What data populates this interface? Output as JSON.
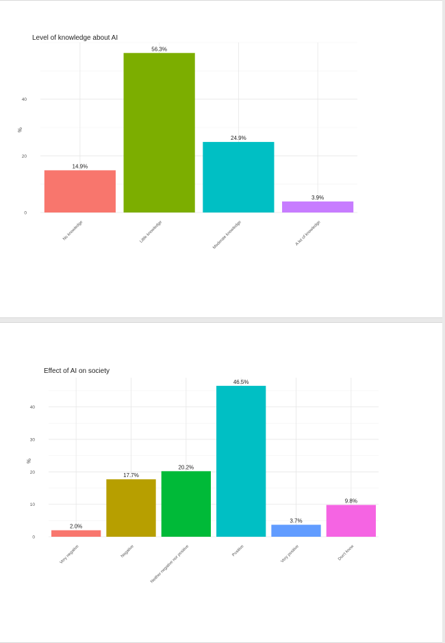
{
  "chart_data": [
    {
      "type": "bar",
      "title": "Level of knowledge about AI",
      "xlabel": "",
      "ylabel": "%",
      "ylim": [
        0,
        60
      ],
      "yticks": [
        0,
        20,
        40
      ],
      "grid": true,
      "categories": [
        "No knowledge",
        "Little knowledge",
        "Moderate knowledge",
        "A lot of knowledge"
      ],
      "values": [
        14.9,
        56.3,
        24.9,
        3.9
      ],
      "data_labels": [
        "14.9%",
        "56.3%",
        "24.9%",
        "3.9%"
      ],
      "colors": [
        "#f8766d",
        "#7cae00",
        "#00bfc4",
        "#c77cff"
      ]
    },
    {
      "type": "bar",
      "title": "Effect of AI on society",
      "xlabel": "",
      "ylabel": "%",
      "ylim": [
        0,
        49
      ],
      "yticks": [
        0,
        10,
        20,
        30,
        40
      ],
      "grid": true,
      "categories": [
        "Very negative",
        "Negative",
        "Neither negative nor positive",
        "Positive",
        "Very positive",
        "Don't know"
      ],
      "values": [
        2.0,
        17.7,
        20.2,
        46.5,
        3.7,
        9.8
      ],
      "data_labels": [
        "2.0%",
        "17.7%",
        "20.2%",
        "46.5%",
        "3.7%",
        "9.8%"
      ],
      "colors": [
        "#f8766d",
        "#b79f00",
        "#00ba38",
        "#00bfc4",
        "#619cff",
        "#f564e3"
      ]
    }
  ]
}
